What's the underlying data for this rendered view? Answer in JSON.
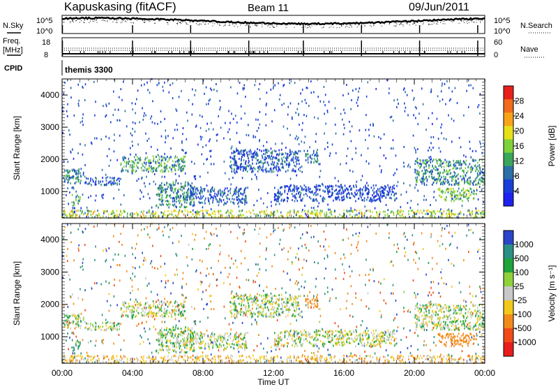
{
  "header": {
    "station": "Kapuskasing (fitACF)",
    "beam": "Beam 11",
    "date": "09/Jun/2011"
  },
  "top_panel": {
    "nsky_label": "N.Sky",
    "nsearch_label": "N.Search",
    "left_ticks": [
      "10^5",
      "10^0"
    ],
    "right_ticks": [
      "10^5",
      "10^0"
    ]
  },
  "freq_panel": {
    "freq_label": "Freq.",
    "freq_unit": "[MHz]",
    "nave_label": "Nave",
    "left_ticks": [
      "18",
      "8"
    ],
    "right_ticks": [
      "60",
      "0"
    ]
  },
  "cpid": {
    "label": "CPID",
    "value": "themis 3300"
  },
  "colorbars": {
    "power": {
      "title": "Power [dB]",
      "labels": [
        "28",
        "24",
        "20",
        "16",
        "12",
        "8",
        "4"
      ],
      "colors": [
        "#e8201c",
        "#f26a1c",
        "#f7a319",
        "#e6e01a",
        "#7fd13a",
        "#3aa65a",
        "#2b6fa8",
        "#1a3fd8",
        "#1e22f0"
      ]
    },
    "velocity": {
      "title": "Velocity [m s⁻¹]",
      "labels": [
        "1000",
        "500",
        "100",
        "25",
        "-25",
        "-100",
        "-500",
        "-1000"
      ],
      "colors": [
        "#2a45c8",
        "#2a8f86",
        "#1ea43a",
        "#8ed13a",
        "#c8c8c8",
        "#f2c81a",
        "#f28a1a",
        "#f04a18",
        "#e81c1c"
      ]
    }
  },
  "chart_data": {
    "type": "heatmap",
    "title": "Kapuskasing (fitACF)",
    "xlabel": "Time UT",
    "ylabel": "Slant Range [km]",
    "x_tick_labels": [
      "00:00",
      "04:00",
      "08:00",
      "12:00",
      "16:00",
      "20:00",
      "00:00"
    ],
    "y_tick_labels": [
      "1000",
      "2000",
      "3000",
      "4000"
    ],
    "xlim_hours": [
      0,
      24
    ],
    "ylim_km": [
      180,
      4500
    ],
    "panels": [
      {
        "name": "Power",
        "unit": "dB",
        "color_range": [
          0,
          32
        ]
      },
      {
        "name": "Velocity",
        "unit": "m s^-1",
        "color_range": [
          -1000,
          1000
        ]
      }
    ],
    "echo_regions": [
      {
        "t_start": 0.0,
        "t_end": 1.3,
        "range_low": 1250,
        "range_high": 1700,
        "power_db": 10,
        "velocity": 20
      },
      {
        "t_start": 0.5,
        "t_end": 1.0,
        "range_low": 550,
        "range_high": 900,
        "power_db": 14,
        "velocity": 120
      },
      {
        "t_start": 1.3,
        "t_end": 3.3,
        "range_low": 1200,
        "range_high": 1450,
        "power_db": 7,
        "velocity": 10
      },
      {
        "t_start": 3.3,
        "t_end": 7.0,
        "range_low": 1600,
        "range_high": 2100,
        "power_db": 13,
        "velocity": 15
      },
      {
        "t_start": 5.3,
        "t_end": 7.5,
        "range_low": 500,
        "range_high": 1300,
        "power_db": 11,
        "velocity": 30
      },
      {
        "t_start": 7.0,
        "t_end": 10.5,
        "range_low": 600,
        "range_high": 1100,
        "power_db": 7,
        "velocity": 10
      },
      {
        "t_start": 9.5,
        "t_end": 13.5,
        "range_low": 1600,
        "range_high": 2300,
        "power_db": 7,
        "velocity": 15
      },
      {
        "t_start": 13.8,
        "t_end": 14.5,
        "range_low": 1900,
        "range_high": 2300,
        "power_db": 10,
        "velocity": -300
      },
      {
        "t_start": 12.0,
        "t_end": 19.0,
        "range_low": 700,
        "range_high": 1200,
        "power_db": 6,
        "velocity": 5
      },
      {
        "t_start": 20.0,
        "t_end": 24.0,
        "range_low": 1200,
        "range_high": 2000,
        "power_db": 11,
        "velocity": 20
      },
      {
        "t_start": 21.3,
        "t_end": 23.5,
        "range_low": 700,
        "range_high": 1100,
        "power_db": 15,
        "velocity": -200
      },
      {
        "t_start": 0.0,
        "t_end": 24.0,
        "range_low": 180,
        "range_high": 420,
        "power_db": 18,
        "velocity": -60
      }
    ]
  }
}
